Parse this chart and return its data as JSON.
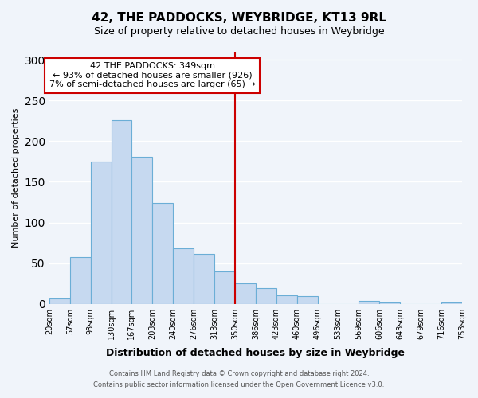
{
  "title": "42, THE PADDOCKS, WEYBRIDGE, KT13 9RL",
  "subtitle": "Size of property relative to detached houses in Weybridge",
  "xlabel": "Distribution of detached houses by size in Weybridge",
  "ylabel": "Number of detached properties",
  "bin_labels": [
    "20sqm",
    "57sqm",
    "93sqm",
    "130sqm",
    "167sqm",
    "203sqm",
    "240sqm",
    "276sqm",
    "313sqm",
    "350sqm",
    "386sqm",
    "423sqm",
    "460sqm",
    "496sqm",
    "533sqm",
    "569sqm",
    "606sqm",
    "643sqm",
    "679sqm",
    "716sqm",
    "753sqm"
  ],
  "bin_values": [
    7,
    57,
    175,
    226,
    181,
    124,
    68,
    61,
    40,
    25,
    19,
    10,
    9,
    0,
    0,
    4,
    2,
    0,
    0,
    2
  ],
  "bar_color": "#c6d9f0",
  "bar_edge_color": "#6baed6",
  "vline_x_index": 9,
  "vline_color": "#cc0000",
  "annotation_text": "42 THE PADDOCKS: 349sqm\n← 93% of detached houses are smaller (926)\n7% of semi-detached houses are larger (65) →",
  "annotation_box_color": "#ffffff",
  "annotation_box_edge": "#cc0000",
  "ylim": [
    0,
    310
  ],
  "yticks": [
    0,
    50,
    100,
    150,
    200,
    250,
    300
  ],
  "footer_line1": "Contains HM Land Registry data © Crown copyright and database right 2024.",
  "footer_line2": "Contains public sector information licensed under the Open Government Licence v3.0.",
  "background_color": "#f0f4fa",
  "grid_color": "#ffffff"
}
